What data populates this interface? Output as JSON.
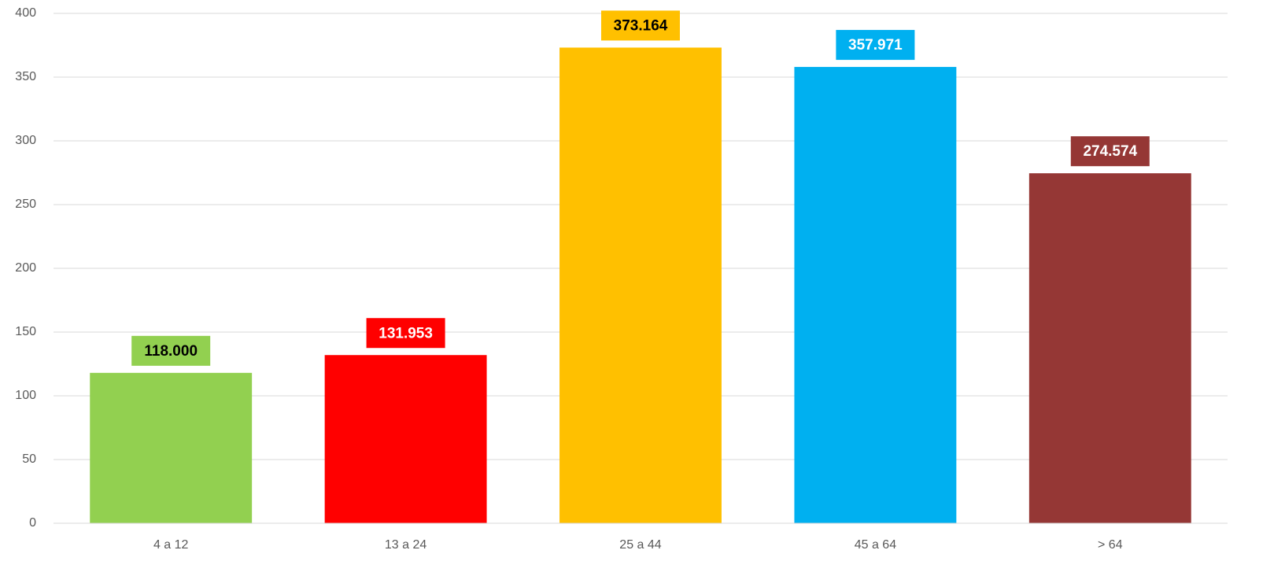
{
  "chart_data": {
    "type": "bar",
    "categories": [
      "4 a 12",
      "13 a 24",
      "25 a 44",
      "45 a 64",
      "> 64"
    ],
    "values": [
      118,
      131.953,
      373.164,
      357.971,
      274.574
    ],
    "value_labels": [
      "118.000",
      "131.953",
      "373.164",
      "357.971",
      "274.574"
    ],
    "colors": [
      "#92d050",
      "#ff0000",
      "#ffc000",
      "#00b0f0",
      "#953735"
    ],
    "label_text_colors": [
      "#000000",
      "#ffffff",
      "#000000",
      "#ffffff",
      "#ffffff"
    ],
    "ylim": [
      0,
      400
    ],
    "yticks": [
      0,
      50,
      100,
      150,
      200,
      250,
      300,
      350,
      400
    ],
    "grid": true
  }
}
